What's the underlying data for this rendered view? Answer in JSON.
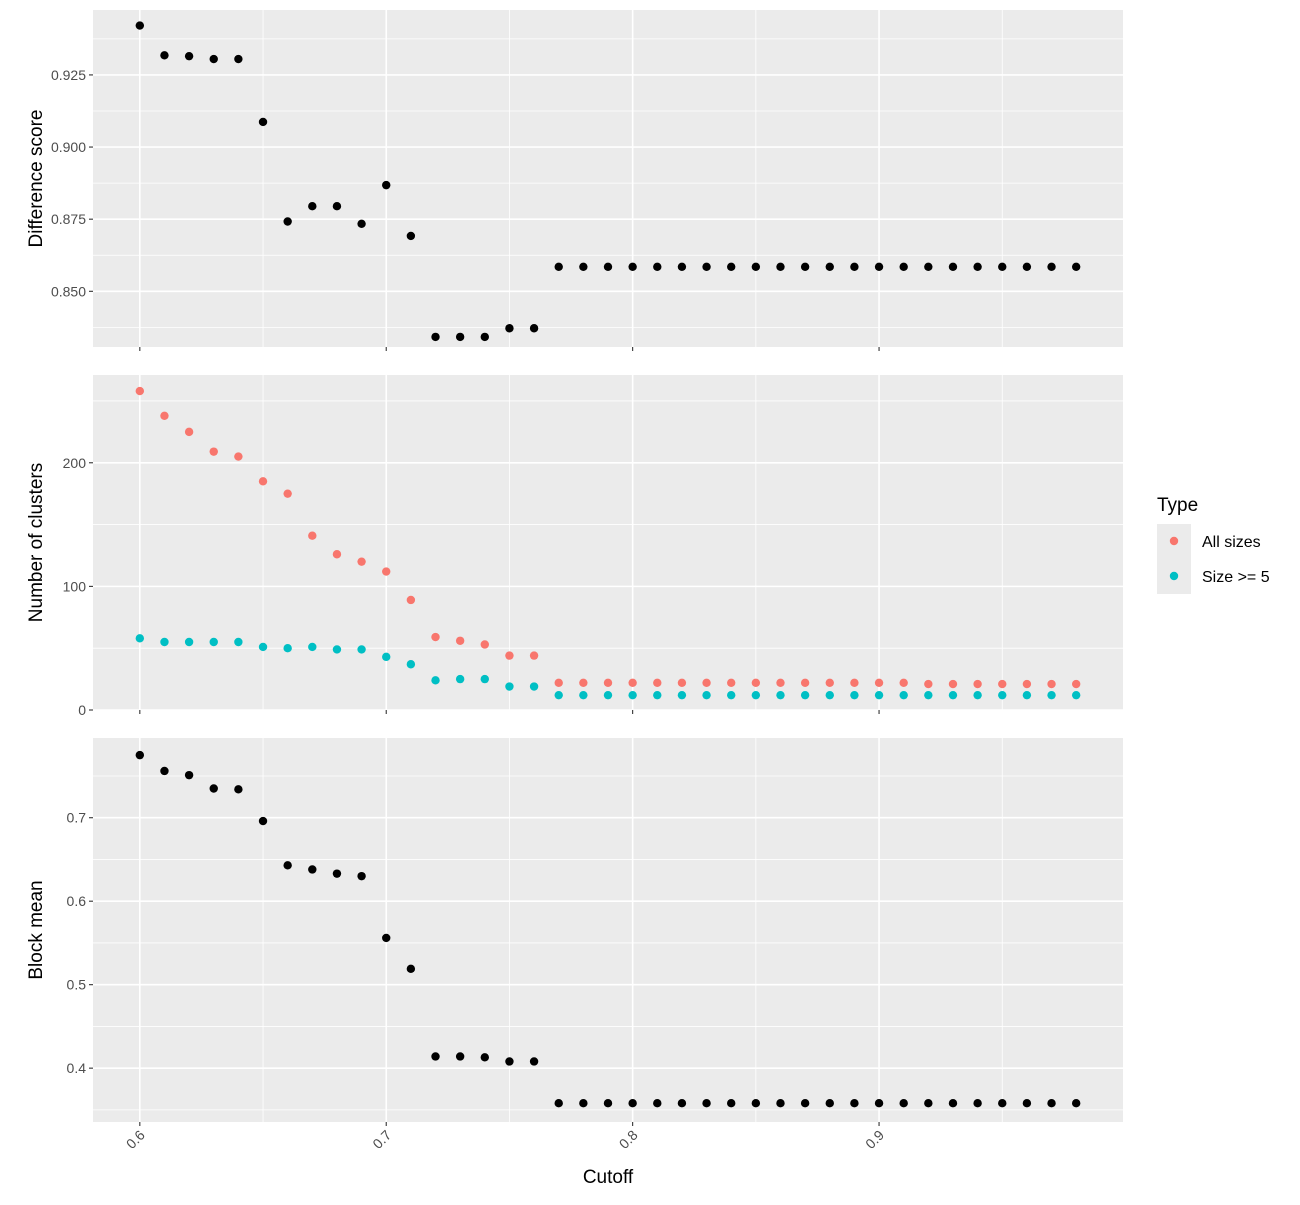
{
  "chart_data": {
    "type": "scatter",
    "xlabel": "Cutoff",
    "x_ticks": [
      0.6,
      0.7,
      0.8,
      0.9
    ],
    "x_tick_labels": [
      "0.6",
      "0.7",
      "0.8",
      "0.9"
    ],
    "xlim": [
      0.581,
      0.999
    ],
    "x": [
      0.6,
      0.61,
      0.62,
      0.63,
      0.64,
      0.65,
      0.66,
      0.67,
      0.68,
      0.69,
      0.7,
      0.71,
      0.72,
      0.73,
      0.74,
      0.75,
      0.76,
      0.77,
      0.78,
      0.79,
      0.8,
      0.81,
      0.82,
      0.83,
      0.84,
      0.85,
      0.86,
      0.87,
      0.88,
      0.89,
      0.9,
      0.91,
      0.92,
      0.93,
      0.94,
      0.95,
      0.96,
      0.97,
      0.98
    ],
    "panels": [
      {
        "ylabel": "Difference score",
        "ylim": [
          0.8307,
          0.9475
        ],
        "y_ticks": [
          0.85,
          0.875,
          0.9,
          0.925
        ],
        "y_tick_labels": [
          "0.850",
          "0.875",
          "0.900",
          "0.925"
        ],
        "y_minor": [
          0.8375,
          0.8625,
          0.8875,
          0.9125,
          0.9375
        ],
        "series": [
          {
            "color": "#000000",
            "values": [
              0.9421,
              0.9318,
              0.9315,
              0.9305,
              0.9305,
              0.9087,
              0.8742,
              0.8795,
              0.8795,
              0.8734,
              0.8868,
              0.8692,
              0.8342,
              0.8342,
              0.8342,
              0.8372,
              0.8372,
              0.8585,
              0.8585,
              0.8585,
              0.8585,
              0.8585,
              0.8585,
              0.8585,
              0.8585,
              0.8585,
              0.8585,
              0.8585,
              0.8585,
              0.8585,
              0.8585,
              0.8585,
              0.8585,
              0.8585,
              0.8585,
              0.8585,
              0.8585,
              0.8585,
              0.8585
            ]
          }
        ]
      },
      {
        "ylabel": "Number of clusters",
        "ylim": [
          0,
          271
        ],
        "y_ticks": [
          0,
          100,
          200
        ],
        "y_tick_labels": [
          "0",
          "100",
          "200"
        ],
        "y_minor": [
          50,
          150,
          250
        ],
        "series": [
          {
            "name": "All sizes",
            "color": "#F8766D",
            "values": [
              258,
              238,
              225,
              209,
              205,
              185,
              175,
              141,
              126,
              120,
              112,
              89,
              59,
              56,
              53,
              44,
              44,
              22,
              22,
              22,
              22,
              22,
              22,
              22,
              22,
              22,
              22,
              22,
              22,
              22,
              22,
              22,
              21,
              21,
              21,
              21,
              21,
              21,
              21
            ]
          },
          {
            "name": "Size >= 5",
            "color": "#00BFC4",
            "values": [
              58,
              55,
              55,
              55,
              55,
              51,
              50,
              51,
              49,
              49,
              43,
              37,
              24,
              25,
              25,
              19,
              19,
              12,
              12,
              12,
              12,
              12,
              12,
              12,
              12,
              12,
              12,
              12,
              12,
              12,
              12,
              12,
              12,
              12,
              12,
              12,
              12,
              12,
              12
            ]
          }
        ]
      },
      {
        "ylabel": "Block mean",
        "ylim": [
          0.3355,
          0.7955
        ],
        "y_ticks": [
          0.4,
          0.5,
          0.6,
          0.7
        ],
        "y_tick_labels": [
          "0.4",
          "0.5",
          "0.6",
          "0.7"
        ],
        "y_minor": [
          0.35,
          0.45,
          0.55,
          0.65,
          0.75
        ],
        "series": [
          {
            "color": "#000000",
            "values": [
              0.775,
              0.756,
              0.751,
              0.735,
              0.734,
              0.696,
              0.643,
              0.638,
              0.633,
              0.63,
              0.556,
              0.519,
              0.414,
              0.414,
              0.413,
              0.408,
              0.408,
              0.358,
              0.358,
              0.358,
              0.358,
              0.358,
              0.358,
              0.358,
              0.358,
              0.358,
              0.358,
              0.358,
              0.358,
              0.358,
              0.358,
              0.358,
              0.358,
              0.358,
              0.358,
              0.358,
              0.358,
              0.358,
              0.358
            ]
          }
        ]
      }
    ],
    "legend": {
      "title": "Type",
      "placement": "right",
      "entries": [
        {
          "label": "All sizes",
          "color": "#F8766D"
        },
        {
          "label": "Size >= 5",
          "color": "#00BFC4"
        }
      ]
    },
    "grid": true,
    "background": "#EBEBEB"
  }
}
